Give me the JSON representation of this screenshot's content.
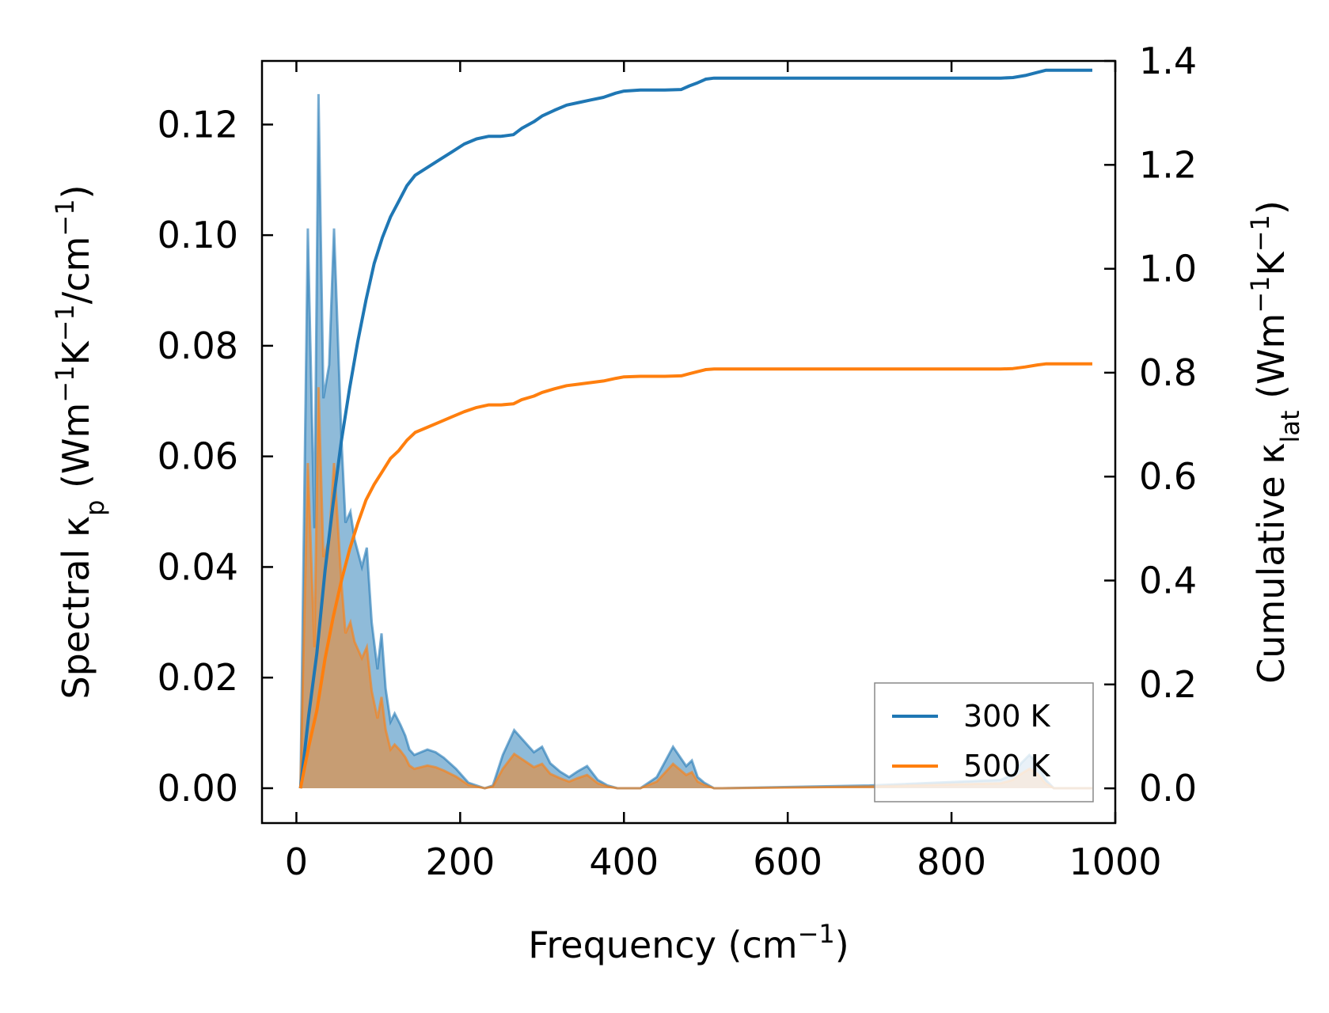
{
  "chart_data": {
    "type": "area",
    "title": "",
    "xlabel": {
      "main": "Frequency (cm",
      "sup": "−1",
      "close": ")"
    },
    "ylabel_left": {
      "parts": [
        {
          "t": "Spectral κ"
        },
        {
          "t": "p",
          "sub": true
        },
        {
          "t": " (Wm"
        },
        {
          "t": "−1",
          "sup": true
        },
        {
          "t": "K"
        },
        {
          "t": "−1",
          "sup": true
        },
        {
          "t": "/cm"
        },
        {
          "t": "−1",
          "sup": true
        },
        {
          "t": ")"
        }
      ]
    },
    "ylabel_right": {
      "parts": [
        {
          "t": "Cumulative κ"
        },
        {
          "t": "lat",
          "sub": true
        },
        {
          "t": " (Wm"
        },
        {
          "t": "−1",
          "sup": true
        },
        {
          "t": "K"
        },
        {
          "t": "−1",
          "sup": true
        },
        {
          "t": ")"
        }
      ]
    },
    "xlim": [
      -42,
      1000
    ],
    "ylim_left": [
      -0.0063,
      0.1315
    ],
    "ylim_right": [
      -0.0668,
      1.4
    ],
    "xticks": [
      0,
      200,
      400,
      600,
      800,
      1000
    ],
    "xtick_labels": [
      "0",
      "200",
      "400",
      "600",
      "800",
      "1000"
    ],
    "yticks_left": [
      0.0,
      0.02,
      0.04,
      0.06,
      0.08,
      0.1,
      0.12
    ],
    "ytick_labels_left": [
      "0.00",
      "0.02",
      "0.04",
      "0.06",
      "0.08",
      "0.10",
      "0.12"
    ],
    "yticks_right": [
      0.0,
      0.2,
      0.4,
      0.6,
      0.8,
      1.0,
      1.2,
      1.4
    ],
    "ytick_labels_right": [
      "0.0",
      "0.2",
      "0.4",
      "0.6",
      "0.8",
      "1.0",
      "1.2",
      "1.4"
    ],
    "legend": {
      "position": "lower-right",
      "entries": [
        "300 K",
        "500 K"
      ]
    },
    "colors": {
      "300 K": "#1f77b4",
      "500 K": "#ff7f0e"
    },
    "series": [
      {
        "name": "300 K",
        "kind": "spectral",
        "axis": "left",
        "x": [
          5,
          14,
          22,
          27,
          33,
          40,
          46,
          55,
          60,
          66,
          71,
          80,
          86,
          92,
          99,
          104,
          109,
          115,
          120,
          127,
          133,
          138,
          144,
          152,
          160,
          170,
          180,
          195,
          210,
          230,
          240,
          252,
          266,
          278,
          290,
          300,
          310,
          322,
          333,
          343,
          355,
          368,
          380,
          392,
          405,
          420,
          440,
          460,
          476,
          483,
          490,
          498,
          510,
          520,
          700,
          860,
          875,
          885,
          895,
          905,
          915,
          925,
          972
        ],
        "y": [
          0,
          0.1012,
          0.047,
          0.1255,
          0.0705,
          0.0765,
          0.1012,
          0.063,
          0.048,
          0.05,
          0.045,
          0.04,
          0.0435,
          0.03,
          0.0215,
          0.028,
          0.018,
          0.012,
          0.0135,
          0.0115,
          0.0095,
          0.007,
          0.006,
          0.0065,
          0.007,
          0.0065,
          0.0055,
          0.0035,
          0.001,
          0,
          0.0005,
          0.006,
          0.0105,
          0.0085,
          0.0065,
          0.0075,
          0.0045,
          0.003,
          0.002,
          0.003,
          0.004,
          0.0015,
          0.0005,
          0,
          0,
          0,
          0.002,
          0.0075,
          0.004,
          0.005,
          0.002,
          0.001,
          0,
          0,
          0.0005,
          0.0015,
          0.0025,
          0.0045,
          0.006,
          0.0045,
          0.0015,
          0,
          0
        ]
      },
      {
        "name": "500 K",
        "kind": "spectral",
        "axis": "left",
        "x": [
          5,
          14,
          22,
          27,
          33,
          40,
          46,
          55,
          60,
          66,
          71,
          80,
          86,
          92,
          99,
          104,
          109,
          115,
          120,
          127,
          133,
          138,
          144,
          152,
          160,
          170,
          180,
          195,
          210,
          230,
          240,
          252,
          266,
          278,
          290,
          300,
          310,
          322,
          333,
          343,
          355,
          368,
          380,
          392,
          405,
          420,
          440,
          460,
          476,
          483,
          490,
          498,
          510,
          520,
          700,
          860,
          875,
          885,
          895,
          905,
          915,
          925,
          972
        ],
        "y": [
          0,
          0.0588,
          0.0255,
          0.0725,
          0.0418,
          0.045,
          0.0588,
          0.037,
          0.028,
          0.03,
          0.0265,
          0.0235,
          0.0255,
          0.0176,
          0.0126,
          0.0165,
          0.0106,
          0.007,
          0.0079,
          0.0068,
          0.0056,
          0.0041,
          0.0035,
          0.0038,
          0.0041,
          0.0038,
          0.0032,
          0.0021,
          0.0006,
          0,
          0.0003,
          0.0035,
          0.0062,
          0.005,
          0.0038,
          0.0044,
          0.0026,
          0.0018,
          0.0012,
          0.0018,
          0.0024,
          0.0009,
          0.0003,
          0,
          0,
          0,
          0.0012,
          0.0044,
          0.0024,
          0.0029,
          0.0012,
          0.0006,
          0,
          0,
          0.0003,
          0.0009,
          0.0015,
          0.0026,
          0.0035,
          0.0026,
          0.0009,
          0,
          0
        ]
      },
      {
        "name": "300 K",
        "kind": "cumulative",
        "axis": "right",
        "x": [
          5,
          15,
          25,
          35,
          45,
          55,
          65,
          75,
          85,
          95,
          105,
          115,
          125,
          135,
          145,
          160,
          175,
          190,
          205,
          220,
          235,
          250,
          265,
          275,
          290,
          300,
          315,
          330,
          345,
          360,
          375,
          390,
          400,
          420,
          450,
          470,
          480,
          490,
          500,
          510,
          600,
          800,
          860,
          875,
          890,
          905,
          915,
          930,
          972
        ],
        "y": [
          0,
          0.14,
          0.26,
          0.42,
          0.55,
          0.67,
          0.77,
          0.86,
          0.94,
          1.01,
          1.06,
          1.1,
          1.13,
          1.16,
          1.18,
          1.195,
          1.21,
          1.225,
          1.24,
          1.25,
          1.255,
          1.255,
          1.258,
          1.27,
          1.283,
          1.294,
          1.305,
          1.315,
          1.32,
          1.325,
          1.33,
          1.338,
          1.342,
          1.344,
          1.344,
          1.345,
          1.352,
          1.358,
          1.365,
          1.367,
          1.367,
          1.367,
          1.367,
          1.368,
          1.372,
          1.378,
          1.382,
          1.382,
          1.382
        ]
      },
      {
        "name": "500 K",
        "kind": "cumulative",
        "axis": "right",
        "x": [
          5,
          15,
          25,
          35,
          45,
          55,
          65,
          75,
          85,
          95,
          105,
          115,
          125,
          135,
          145,
          160,
          175,
          190,
          205,
          220,
          235,
          250,
          265,
          275,
          290,
          300,
          315,
          330,
          345,
          360,
          375,
          390,
          400,
          420,
          450,
          470,
          480,
          490,
          500,
          510,
          600,
          800,
          860,
          875,
          890,
          905,
          915,
          930,
          972
        ],
        "y": [
          0,
          0.08,
          0.15,
          0.25,
          0.33,
          0.4,
          0.46,
          0.51,
          0.555,
          0.585,
          0.61,
          0.635,
          0.65,
          0.67,
          0.685,
          0.695,
          0.705,
          0.715,
          0.725,
          0.733,
          0.738,
          0.738,
          0.74,
          0.748,
          0.755,
          0.762,
          0.769,
          0.775,
          0.778,
          0.781,
          0.784,
          0.789,
          0.792,
          0.793,
          0.793,
          0.794,
          0.798,
          0.802,
          0.806,
          0.807,
          0.807,
          0.807,
          0.807,
          0.808,
          0.811,
          0.815,
          0.817,
          0.817,
          0.817
        ]
      }
    ]
  }
}
